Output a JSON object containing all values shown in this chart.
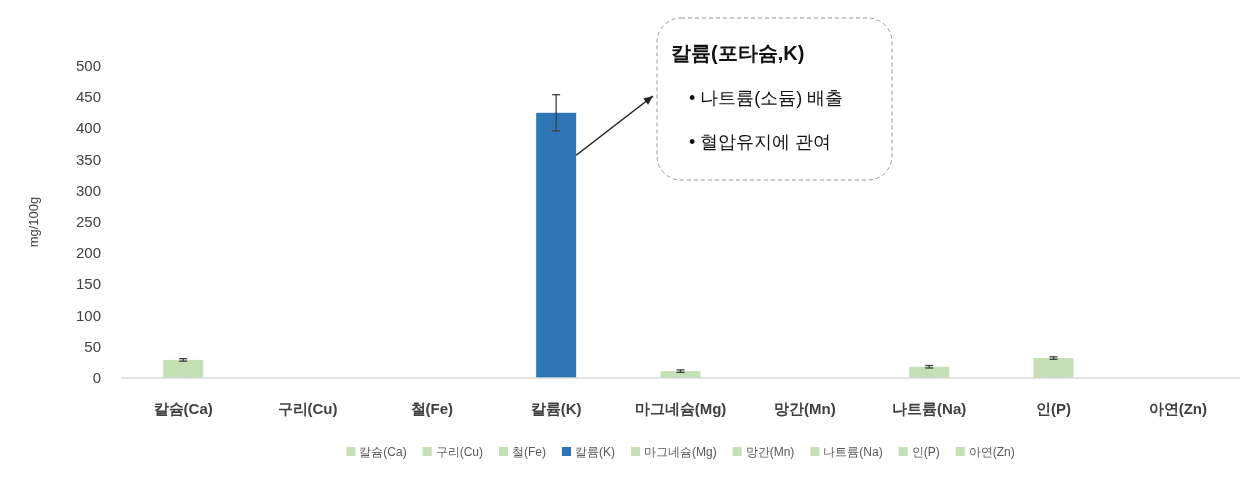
{
  "chart_data": {
    "type": "bar",
    "ylabel": "mg/100g",
    "categories": [
      "칼슘(Ca)",
      "구리(Cu)",
      "철(Fe)",
      "칼륨(K)",
      "마그네슘(Mg)",
      "망간(Mn)",
      "나트륨(Na)",
      "인(P)",
      "아연(Zn)"
    ],
    "series": [
      {
        "name": "칼슘(Ca)",
        "color": "#c5e0b4",
        "values": [
          29,
          null,
          null,
          null,
          null,
          null,
          null,
          null,
          null
        ],
        "errors": [
          2,
          null,
          null,
          null,
          null,
          null,
          null,
          null,
          null
        ]
      },
      {
        "name": "구리(Cu)",
        "color": "#c5e0b4",
        "values": [
          null,
          0,
          null,
          null,
          null,
          null,
          null,
          null,
          null
        ]
      },
      {
        "name": "철(Fe)",
        "color": "#c5e0b4",
        "values": [
          null,
          null,
          0,
          null,
          null,
          null,
          null,
          null,
          null
        ]
      },
      {
        "name": "칼륨(K)",
        "color": "#2e75b6",
        "values": [
          null,
          null,
          null,
          425,
          null,
          null,
          null,
          null,
          null
        ],
        "errors": [
          null,
          null,
          null,
          29,
          null,
          null,
          null,
          null,
          null
        ]
      },
      {
        "name": "마그네슘(Mg)",
        "color": "#c5e0b4",
        "values": [
          null,
          null,
          null,
          null,
          11,
          null,
          null,
          null,
          null
        ],
        "errors": [
          null,
          null,
          null,
          null,
          2,
          null,
          null,
          null,
          null
        ]
      },
      {
        "name": "망간(Mn)",
        "color": "#c5e0b4",
        "values": [
          null,
          null,
          null,
          null,
          null,
          0,
          null,
          null,
          null
        ]
      },
      {
        "name": "나트륨(Na)",
        "color": "#c5e0b4",
        "values": [
          null,
          null,
          null,
          null,
          null,
          null,
          18,
          null,
          null
        ],
        "errors": [
          null,
          null,
          null,
          null,
          null,
          null,
          2,
          null,
          null
        ]
      },
      {
        "name": "인(P)",
        "color": "#c5e0b4",
        "values": [
          null,
          null,
          null,
          null,
          null,
          null,
          null,
          32,
          null
        ],
        "errors": [
          null,
          null,
          null,
          null,
          null,
          null,
          null,
          2,
          null
        ]
      },
      {
        "name": "아연(Zn)",
        "color": "#c5e0b4",
        "values": [
          null,
          null,
          null,
          null,
          null,
          null,
          null,
          null,
          0
        ]
      }
    ],
    "ylim": [
      0,
      500
    ],
    "yticks": [
      0,
      50,
      100,
      150,
      200,
      250,
      300,
      350,
      400,
      450,
      500
    ],
    "grid": false,
    "legend": "bottom",
    "annotations": [
      "칼륨(포타슘,K)",
      "• 나트륨(소듐) 배출",
      "• 혈압유지에 관여"
    ]
  }
}
